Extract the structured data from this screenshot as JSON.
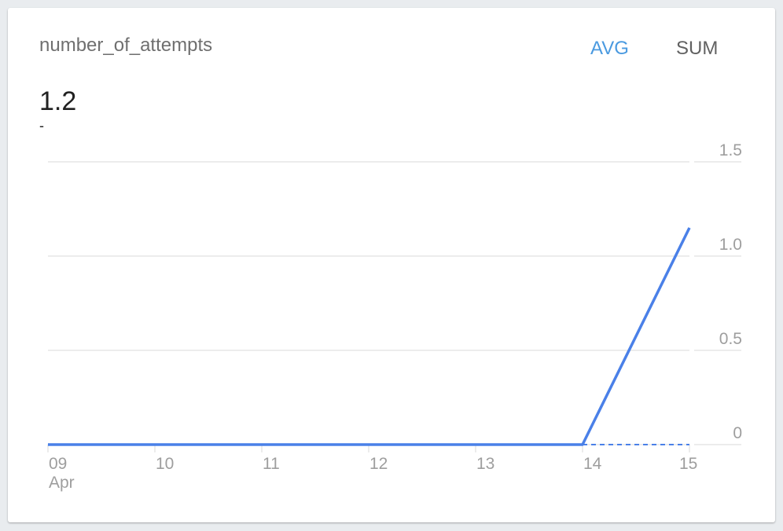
{
  "metric_title": "number_of_attempts",
  "current_value": "1.2",
  "current_sub": "-",
  "toggles": {
    "avg": "AVG",
    "sum": "SUM",
    "selected": "AVG"
  },
  "colors": {
    "line": "#4a80e8",
    "accent": "#4a9ae0",
    "grid": "#e6e6e6"
  },
  "chart_data": {
    "type": "line",
    "x": [
      "09",
      "10",
      "11",
      "12",
      "13",
      "14",
      "15"
    ],
    "x_sublabel": "Apr",
    "series": [
      {
        "values": [
          0,
          0,
          0,
          0,
          0,
          0,
          1.15
        ]
      }
    ],
    "dashed_baseline": [
      "14",
      "15"
    ],
    "yticks": [
      "0",
      "0.5",
      "1.0",
      "1.5"
    ],
    "ylim": [
      0,
      1.5
    ],
    "grid": true,
    "yaxis_position": "right"
  }
}
